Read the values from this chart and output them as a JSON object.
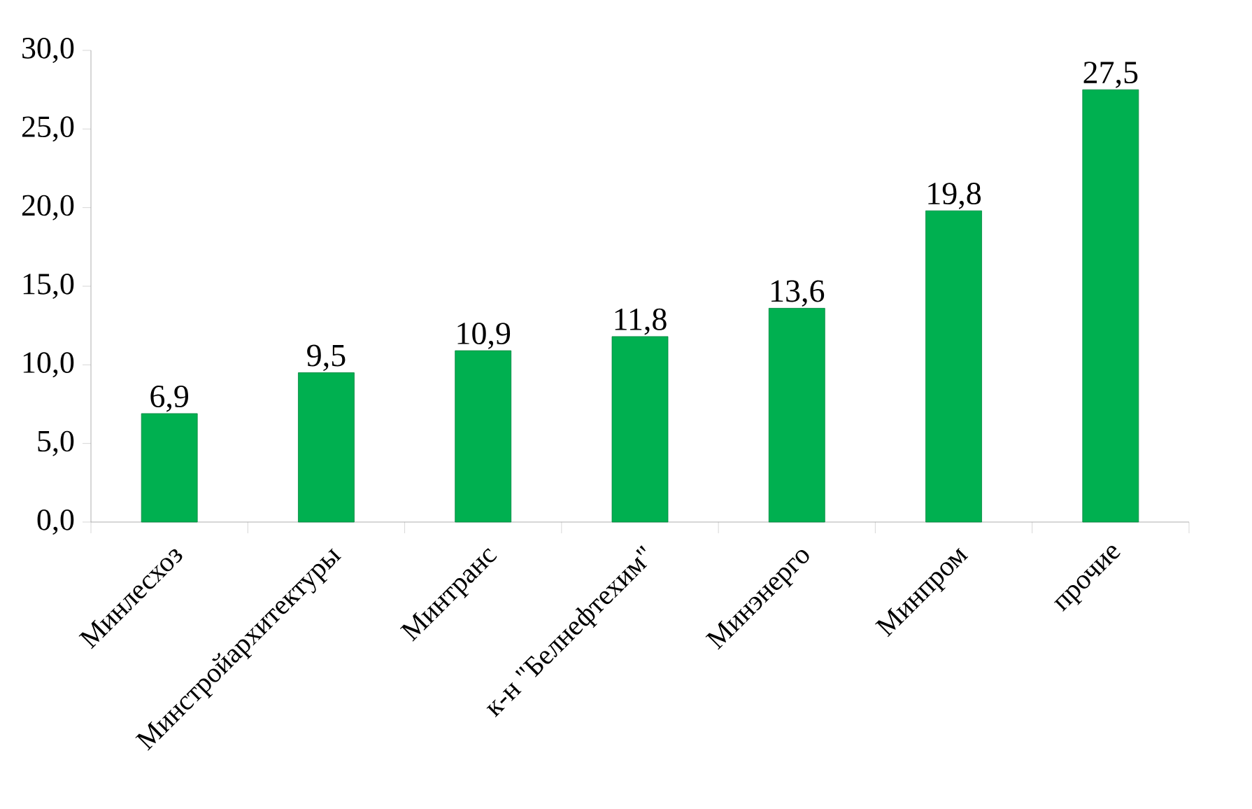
{
  "chart_data": {
    "type": "bar",
    "categories": [
      "Минлесхоз",
      "Минстройархитектуры",
      "Минтранс",
      "к-н \"Белнефтехим\"",
      "Минэнерго",
      "Минпром",
      "прочие"
    ],
    "values": [
      6.9,
      9.5,
      10.9,
      11.8,
      13.6,
      19.8,
      27.5
    ],
    "value_labels": [
      "6,9",
      "9,5",
      "10,9",
      "11,8",
      "13,6",
      "19,8",
      "27,5"
    ],
    "color": "#00b050",
    "ylim": [
      0,
      30
    ],
    "yticks": [
      {
        "value": 0,
        "label": "0,0"
      },
      {
        "value": 5,
        "label": "5,0"
      },
      {
        "value": 10,
        "label": "10,0"
      },
      {
        "value": 15,
        "label": "15,0"
      },
      {
        "value": 20,
        "label": "20,0"
      },
      {
        "value": 25,
        "label": "25,0"
      },
      {
        "value": 30,
        "label": "30,0"
      }
    ]
  }
}
